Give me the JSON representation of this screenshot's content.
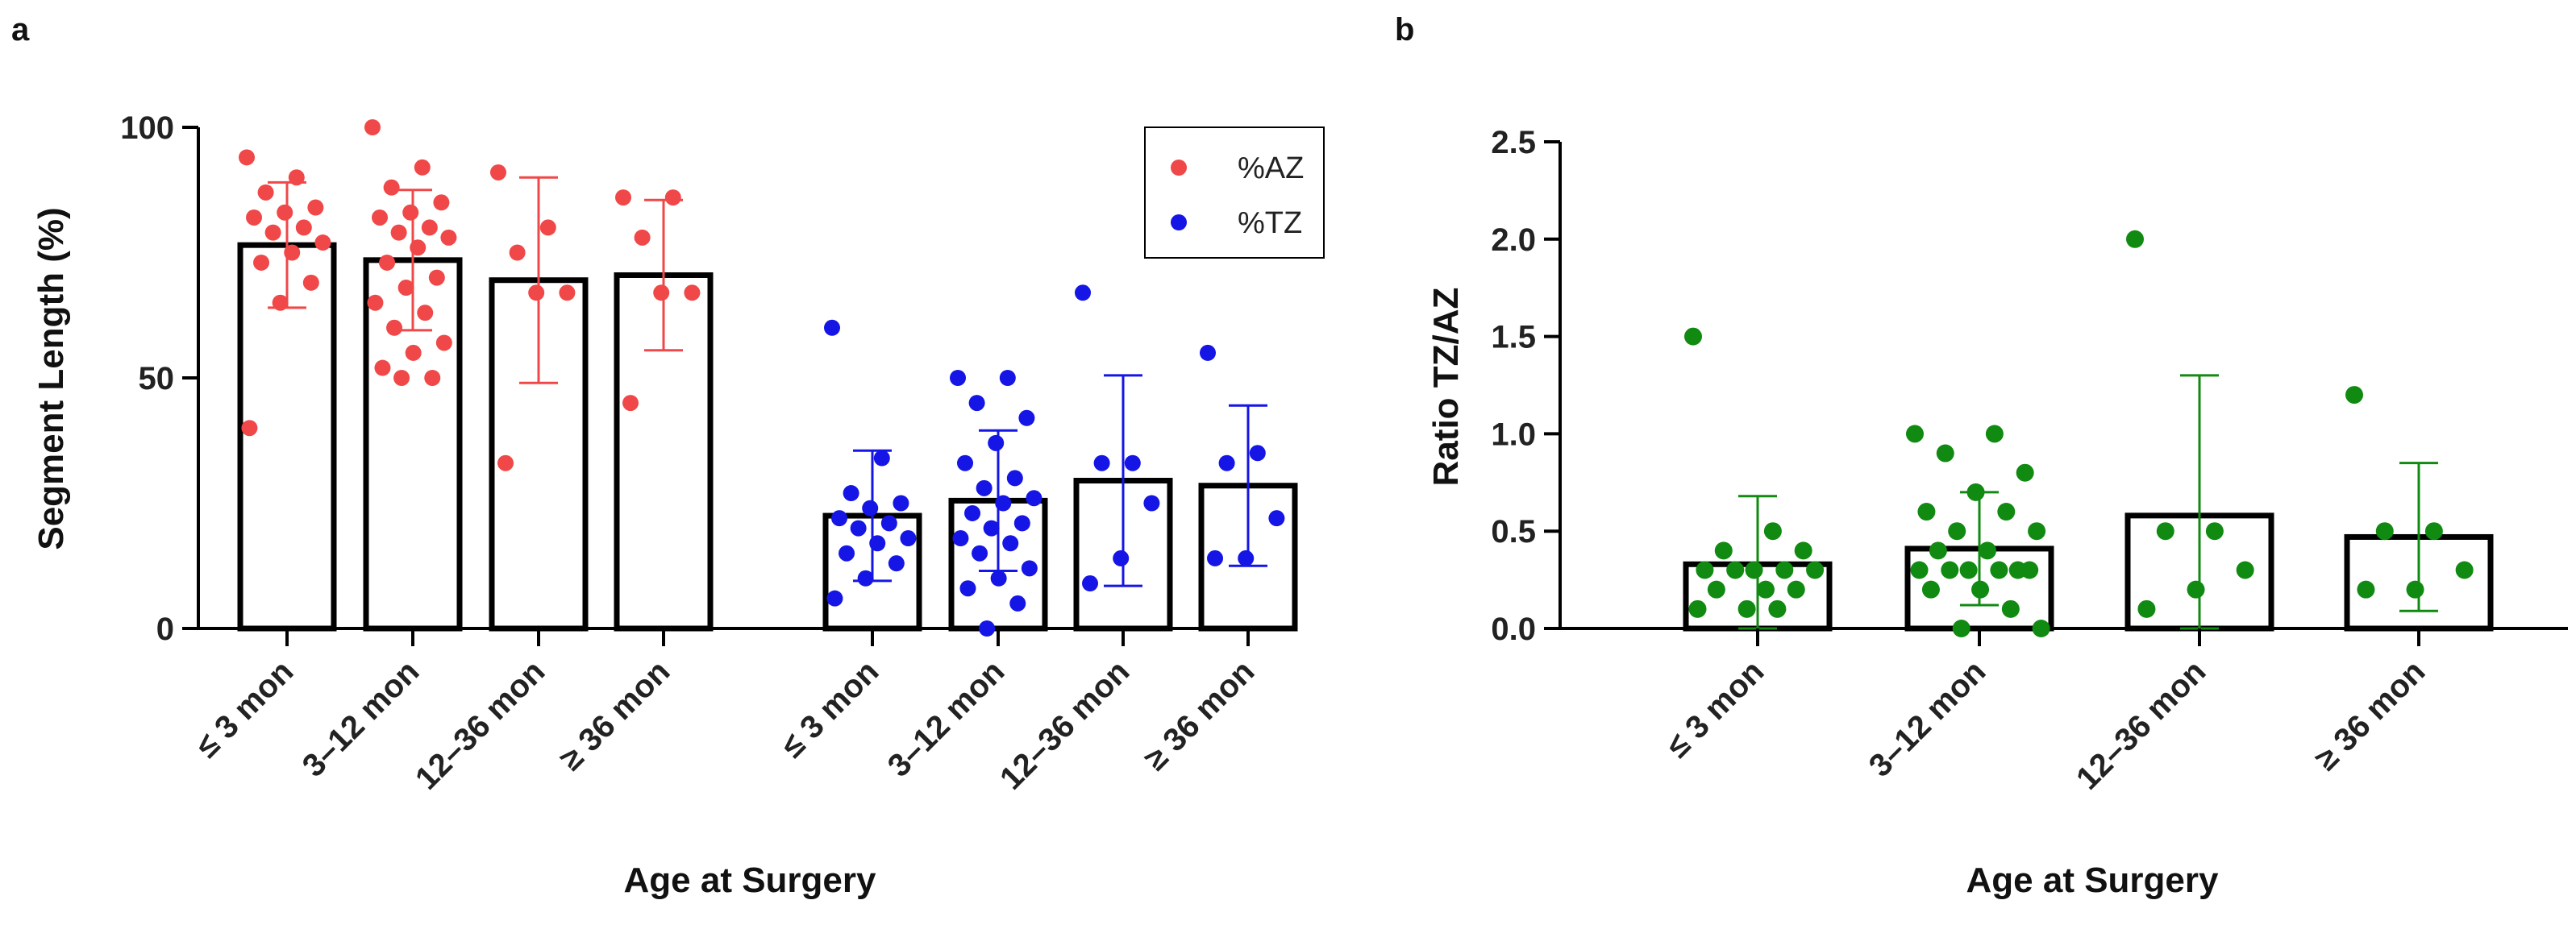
{
  "chart_data": [
    {
      "panel": "a",
      "type": "bar",
      "ylabel": "Segment Length (%)",
      "xlabel": "Age at Surgery",
      "ylim": [
        0,
        100
      ],
      "yticks": [
        0,
        50,
        100
      ],
      "categories": [
        "≤ 3 mon",
        "3–12 mon",
        "12–36 mon",
        "≥ 36 mon"
      ],
      "legend": {
        "position": "top-right"
      },
      "series": [
        {
          "name": "%AZ",
          "color": "#f04848",
          "means": [
            76.5,
            73.5,
            69.5,
            70.5
          ],
          "sd": [
            12.5,
            14,
            20.5,
            15
          ],
          "points": [
            [
              94,
              90,
              87,
              84,
              83,
              82,
              80,
              79,
              77,
              75,
              73,
              69,
              65,
              40
            ],
            [
              100,
              92,
              88,
              85,
              83,
              82,
              80,
              79,
              78,
              76,
              73,
              70,
              68,
              65,
              63,
              60,
              57,
              55,
              52,
              50,
              50
            ],
            [
              91,
              80,
              75,
              67,
              67,
              33
            ],
            [
              86,
              86,
              78,
              67,
              67,
              45
            ]
          ]
        },
        {
          "name": "%TZ",
          "color": "#1515e6",
          "means": [
            22.5,
            25.5,
            29.5,
            28.5
          ],
          "sd": [
            13,
            14,
            21,
            16
          ],
          "points": [
            [
              60,
              34,
              27,
              25,
              24,
              22,
              21,
              20,
              18,
              17,
              15,
              13,
              10,
              6
            ],
            [
              50,
              50,
              45,
              42,
              37,
              33,
              30,
              28,
              26,
              25,
              23,
              21,
              20,
              18,
              17,
              15,
              12,
              10,
              8,
              5,
              0
            ],
            [
              67,
              33,
              33,
              25,
              14,
              9
            ],
            [
              55,
              35,
              33,
              22,
              14,
              14
            ]
          ]
        }
      ]
    },
    {
      "panel": "b",
      "type": "bar",
      "ylabel": "Ratio TZ/AZ",
      "xlabel": "Age at Surgery",
      "ylim": [
        0,
        2.5
      ],
      "yticks": [
        "0.0",
        "0.5",
        "1.0",
        "1.5",
        "2.0",
        "2.5"
      ],
      "categories": [
        "≤ 3 mon",
        "3–12 mon",
        "12–36 mon",
        "≥ 36 mon"
      ],
      "series": [
        {
          "name": "Ratio TZ/AZ",
          "color": "#118a11",
          "means": [
            0.33,
            0.41,
            0.58,
            0.47
          ],
          "sd": [
            0.35,
            0.29,
            0.72,
            0.38
          ],
          "points": [
            [
              1.5,
              0.5,
              0.4,
              0.4,
              0.3,
              0.3,
              0.3,
              0.3,
              0.3,
              0.2,
              0.2,
              0.2,
              0.1,
              0.1,
              0.1
            ],
            [
              1.0,
              1.0,
              0.9,
              0.8,
              0.7,
              0.6,
              0.6,
              0.5,
              0.5,
              0.4,
              0.4,
              0.3,
              0.3,
              0.3,
              0.3,
              0.3,
              0.3,
              0.2,
              0.2,
              0.1,
              0.0,
              0.0
            ],
            [
              2.0,
              0.5,
              0.5,
              0.3,
              0.2,
              0.1
            ],
            [
              1.2,
              0.5,
              0.5,
              0.3,
              0.2,
              0.2
            ]
          ]
        }
      ]
    }
  ]
}
